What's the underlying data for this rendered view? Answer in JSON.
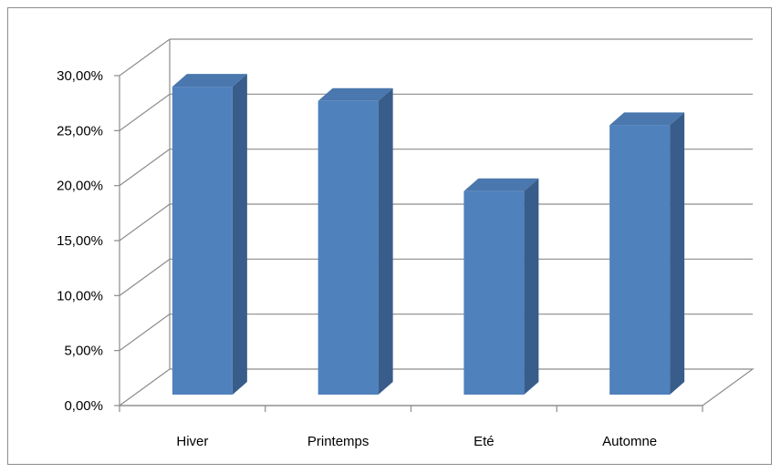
{
  "chart_data": {
    "type": "bar",
    "style": "3d-column",
    "categories": [
      "Hiver",
      "Printemps",
      "Eté",
      "Automne"
    ],
    "values": [
      0.285,
      0.272,
      0.19,
      0.25
    ],
    "ylim": [
      0,
      0.3
    ],
    "yticks": [
      0,
      0.05,
      0.1,
      0.15,
      0.2,
      0.25,
      0.3
    ],
    "ytick_labels": [
      "0,00%",
      "5,00%",
      "10,00%",
      "15,00%",
      "20,00%",
      "25,00%",
      "30,00%"
    ],
    "grid": true,
    "legend": "none",
    "colors": {
      "bar_front": "#4f81bd",
      "bar_side": "#385d8a",
      "bar_top": "#4a77ad",
      "gridline": "#8c8c8c",
      "axis": "#8c8c8c"
    }
  }
}
